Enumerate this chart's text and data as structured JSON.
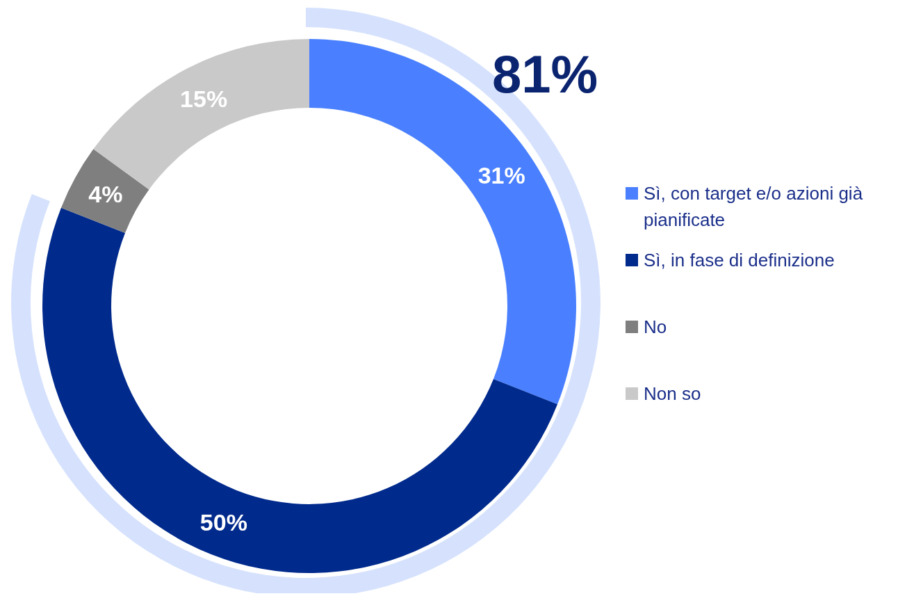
{
  "chart_data": {
    "type": "donut",
    "categories": [
      "Sì, con target e/o azioni già pianificate",
      "Sì, in fase di definizione",
      "No",
      "Non so"
    ],
    "values": [
      31,
      50,
      4,
      15
    ],
    "colors": [
      "#4a80ff",
      "#002a8c",
      "#7f7f7f",
      "#c9c9c9"
    ],
    "value_labels": [
      "31%",
      "50%",
      "4%",
      "15%"
    ],
    "legend": "right",
    "annotations": [
      "81%"
    ]
  }
}
